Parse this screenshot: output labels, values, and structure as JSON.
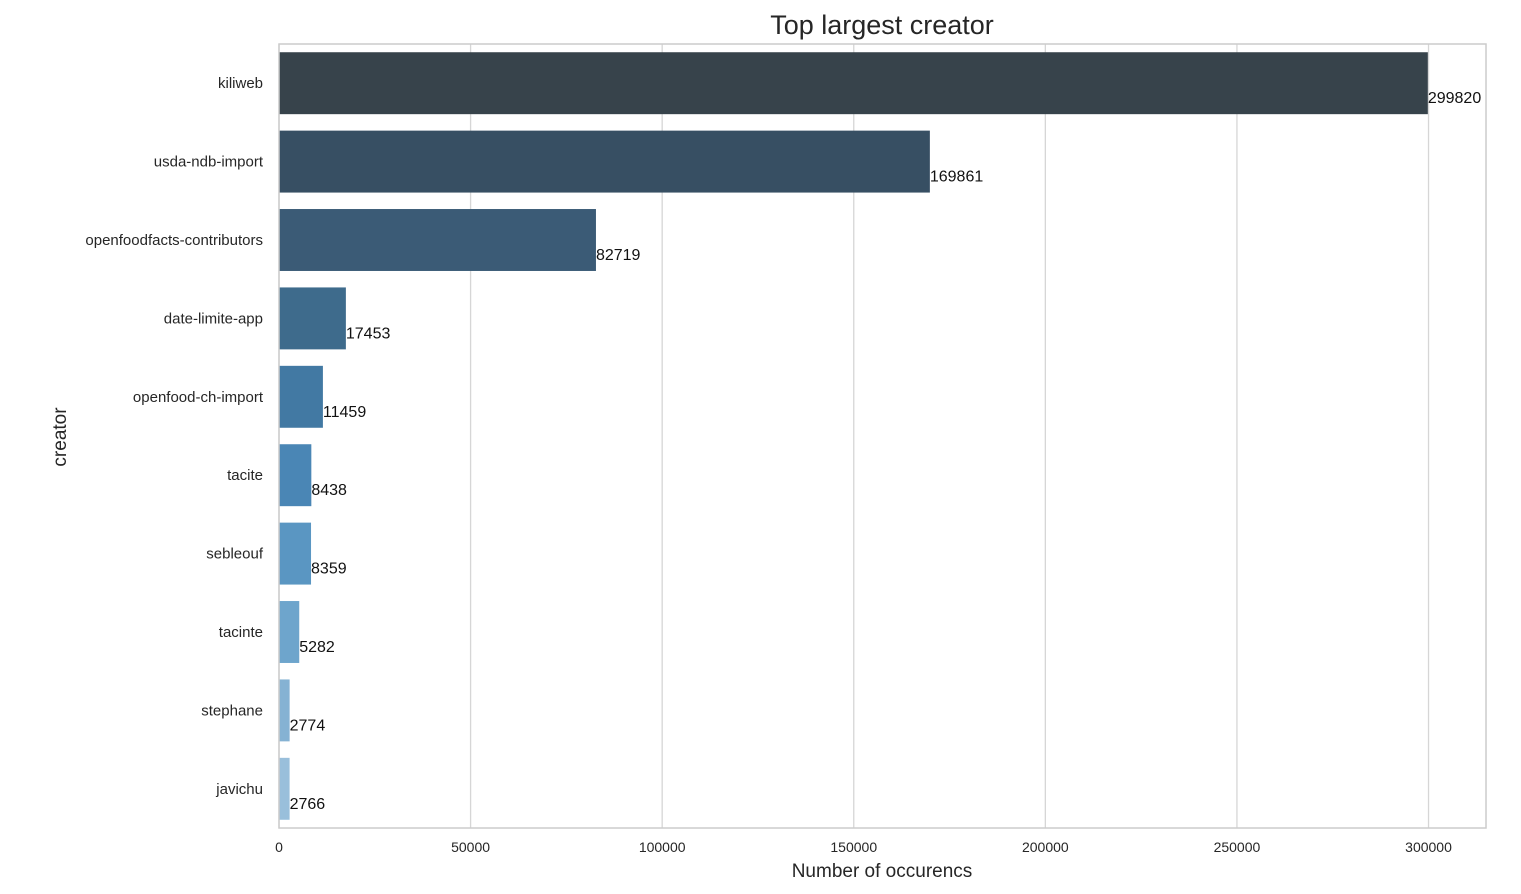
{
  "chart_data": {
    "type": "bar",
    "orientation": "horizontal",
    "title": "Top largest creator",
    "xlabel": "Number of occurencs",
    "ylabel": "creator",
    "categories": [
      "kiliweb",
      "usda-ndb-import",
      "openfoodfacts-contributors",
      "date-limite-app",
      "openfood-ch-import",
      "tacite",
      "sebleouf",
      "tacinte",
      "stephane",
      "javichu"
    ],
    "values": [
      299820,
      169861,
      82719,
      17453,
      11459,
      8438,
      8359,
      5282,
      2774,
      2766
    ],
    "xlim": [
      0,
      315000
    ],
    "xticks": [
      0,
      50000,
      100000,
      150000,
      200000,
      250000,
      300000
    ],
    "grid": "vertical",
    "bar_colors": [
      "#37434b",
      "#374f63",
      "#3b5b76",
      "#3e6b8c",
      "#4279a3",
      "#4a86b5",
      "#5a96c2",
      "#6ea5cc",
      "#85b2d3",
      "#99bfdb"
    ],
    "show_data_labels": true
  }
}
